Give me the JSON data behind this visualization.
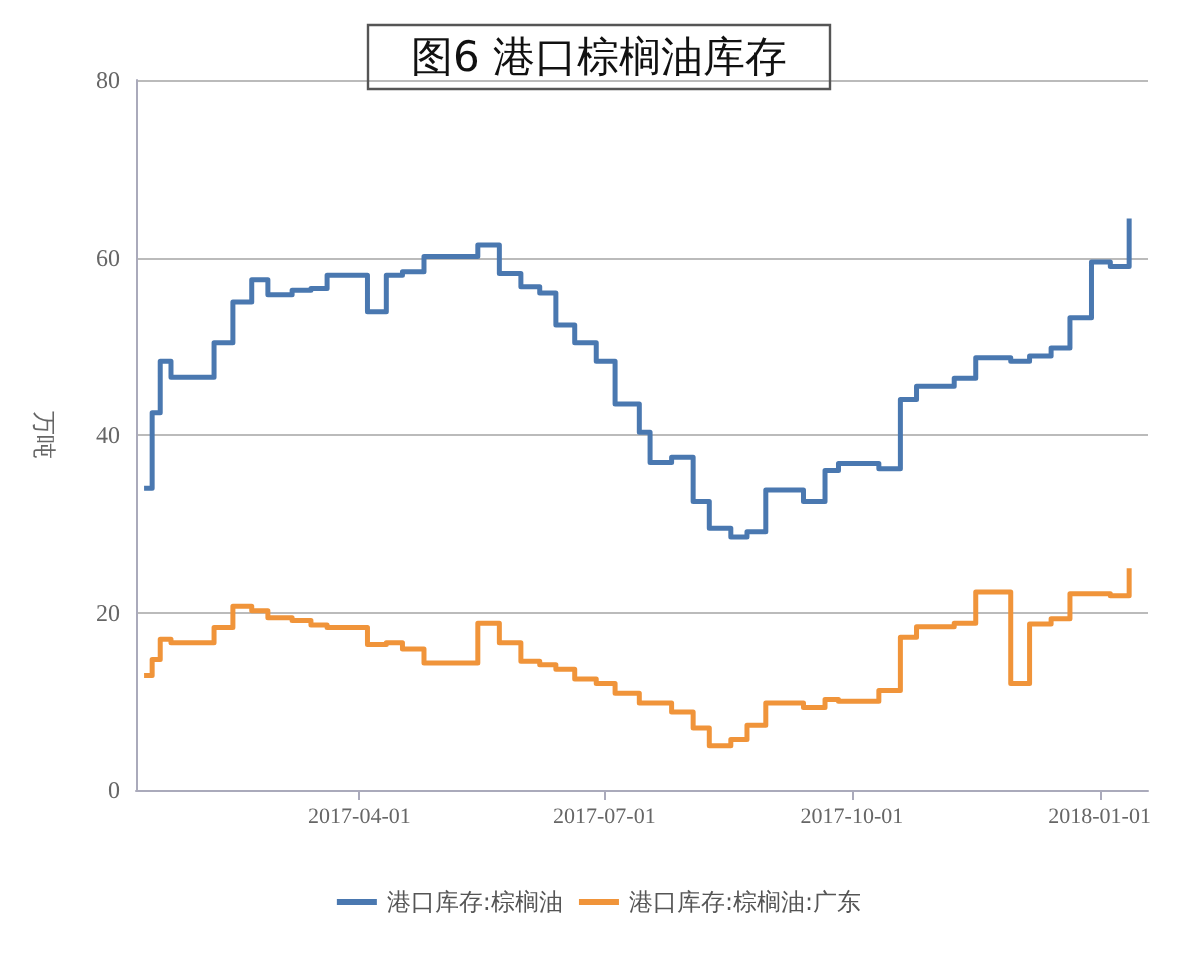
{
  "chart_data": {
    "type": "step",
    "title": "图6 港口棕榈油库存",
    "ylabel": "万吨",
    "x": [
      "2017-01-11",
      "2017-01-14",
      "2017-01-17",
      "2017-01-21",
      "2017-02-06",
      "2017-02-13",
      "2017-02-20",
      "2017-02-26",
      "2017-03-07",
      "2017-03-14",
      "2017-03-20",
      "2017-04-04",
      "2017-04-11",
      "2017-04-17",
      "2017-04-25",
      "2017-05-15",
      "2017-05-23",
      "2017-05-31",
      "2017-06-07",
      "2017-06-13",
      "2017-06-20",
      "2017-06-28",
      "2017-07-05",
      "2017-07-14",
      "2017-07-18",
      "2017-07-26",
      "2017-08-03",
      "2017-08-09",
      "2017-08-17",
      "2017-08-23",
      "2017-08-30",
      "2017-09-13",
      "2017-09-21",
      "2017-09-26",
      "2017-10-11",
      "2017-10-19",
      "2017-10-25",
      "2017-11-08",
      "2017-11-16",
      "2017-11-29",
      "2017-12-06",
      "2017-12-14",
      "2017-12-21",
      "2017-12-29",
      "2018-01-05",
      "2018-01-12"
    ],
    "series": [
      {
        "name": "港口库存:棕榈油",
        "color": "#4a78b0",
        "values": [
          34,
          42.5,
          48.3,
          46.5,
          50.4,
          55,
          57.5,
          55.8,
          56.3,
          56.5,
          58,
          53.9,
          58,
          58.4,
          60.1,
          61.4,
          58.2,
          56.7,
          56,
          52.4,
          50.4,
          48.3,
          43.5,
          40.3,
          36.9,
          37.5,
          32.5,
          29.5,
          28.5,
          29.1,
          33.8,
          32.5,
          36,
          36.8,
          36.2,
          44,
          45.5,
          46.4,
          48.7,
          48.3,
          48.9,
          49.8,
          53.2,
          59.5,
          59,
          64.4
        ]
      },
      {
        "name": "港口库存:棕榈油:广东",
        "color": "#f0943a",
        "values": [
          12.9,
          14.7,
          17,
          16.6,
          18.3,
          20.7,
          20.2,
          19.4,
          19.1,
          18.6,
          18.3,
          16.4,
          16.6,
          15.9,
          14.3,
          18.8,
          16.6,
          14.5,
          14.1,
          13.6,
          12.5,
          12,
          10.9,
          9.8,
          9.8,
          8.8,
          7,
          5,
          5.7,
          7.3,
          9.8,
          9.3,
          10.2,
          10,
          11.2,
          17.2,
          18.4,
          18.8,
          22.3,
          12,
          18.7,
          19.3,
          22.1,
          22.1,
          21.9,
          25
        ]
      }
    ],
    "xlim": [
      "2017-01-08",
      "2018-01-19"
    ],
    "xticks": [
      "2017-04-01",
      "2017-07-01",
      "2017-10-01",
      "2018-01-01"
    ],
    "ylim": [
      0,
      80
    ],
    "yticks": [
      0,
      20,
      40,
      60,
      80
    ],
    "grid": "y",
    "legend": "bottom"
  }
}
